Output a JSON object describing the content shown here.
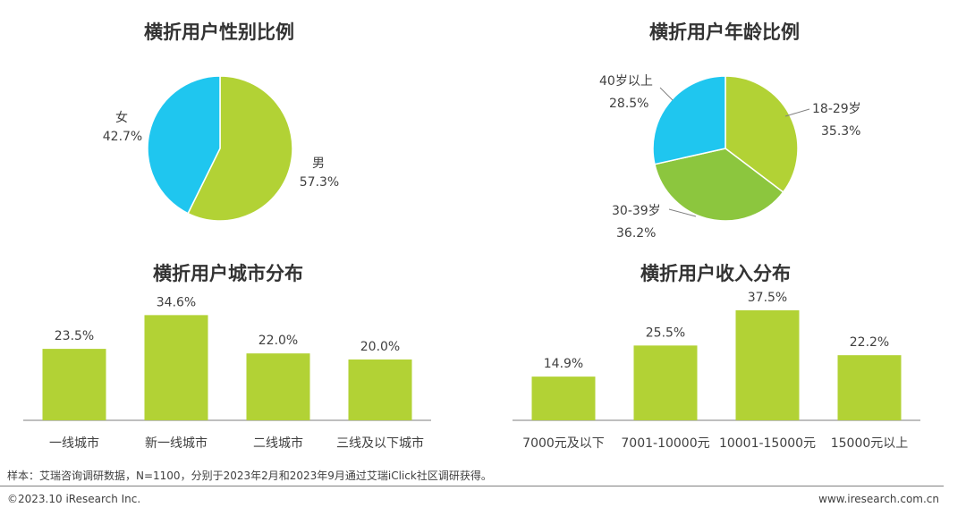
{
  "colors": {
    "green": "#b2d235",
    "blue": "#1fc6ef",
    "darkgreen": "#8cc63e",
    "axis": "#7f7f7f",
    "leader": "#808080"
  },
  "chart_data": [
    {
      "type": "pie",
      "title": "横折用户性别比例",
      "slices": [
        {
          "label": "男",
          "value": 57.3,
          "value_label": "57.3%",
          "color": "#b2d235"
        },
        {
          "label": "女",
          "value": 42.7,
          "value_label": "42.7%",
          "color": "#1fc6ef"
        }
      ]
    },
    {
      "type": "pie",
      "title": "横折用户年龄比例",
      "slices": [
        {
          "label": "18-29岁",
          "value": 35.3,
          "value_label": "35.3%",
          "color": "#b2d235"
        },
        {
          "label": "30-39岁",
          "value": 36.2,
          "value_label": "36.2%",
          "color": "#8cc63e"
        },
        {
          "label": "40岁以上",
          "value": 28.5,
          "value_label": "28.5%",
          "color": "#1fc6ef"
        }
      ]
    },
    {
      "type": "bar",
      "title": "横折用户城市分布",
      "categories": [
        "一线城市",
        "新一线城市",
        "二线城市",
        "三线及以下城市"
      ],
      "values": [
        23.5,
        34.6,
        22.0,
        20.0
      ],
      "value_labels": [
        "23.5%",
        "34.6%",
        "22.0%",
        "20.0%"
      ],
      "color": "#b2d235"
    },
    {
      "type": "bar",
      "title": "横折用户收入分布",
      "categories": [
        "7000元及以下",
        "7001-10000元",
        "10001-15000元",
        "15000元以上"
      ],
      "values": [
        14.9,
        25.5,
        37.5,
        22.2
      ],
      "value_labels": [
        "14.9%",
        "25.5%",
        "37.5%",
        "22.2%"
      ],
      "color": "#b2d235"
    }
  ],
  "footer": {
    "source": "样本：艾瑞咨询调研数据，N=1100，分别于2023年2月和2023年9月通过艾瑞iClick社区调研获得。",
    "copyright": "©2023.10 iResearch Inc.",
    "website": "www.iresearch.com.cn"
  }
}
